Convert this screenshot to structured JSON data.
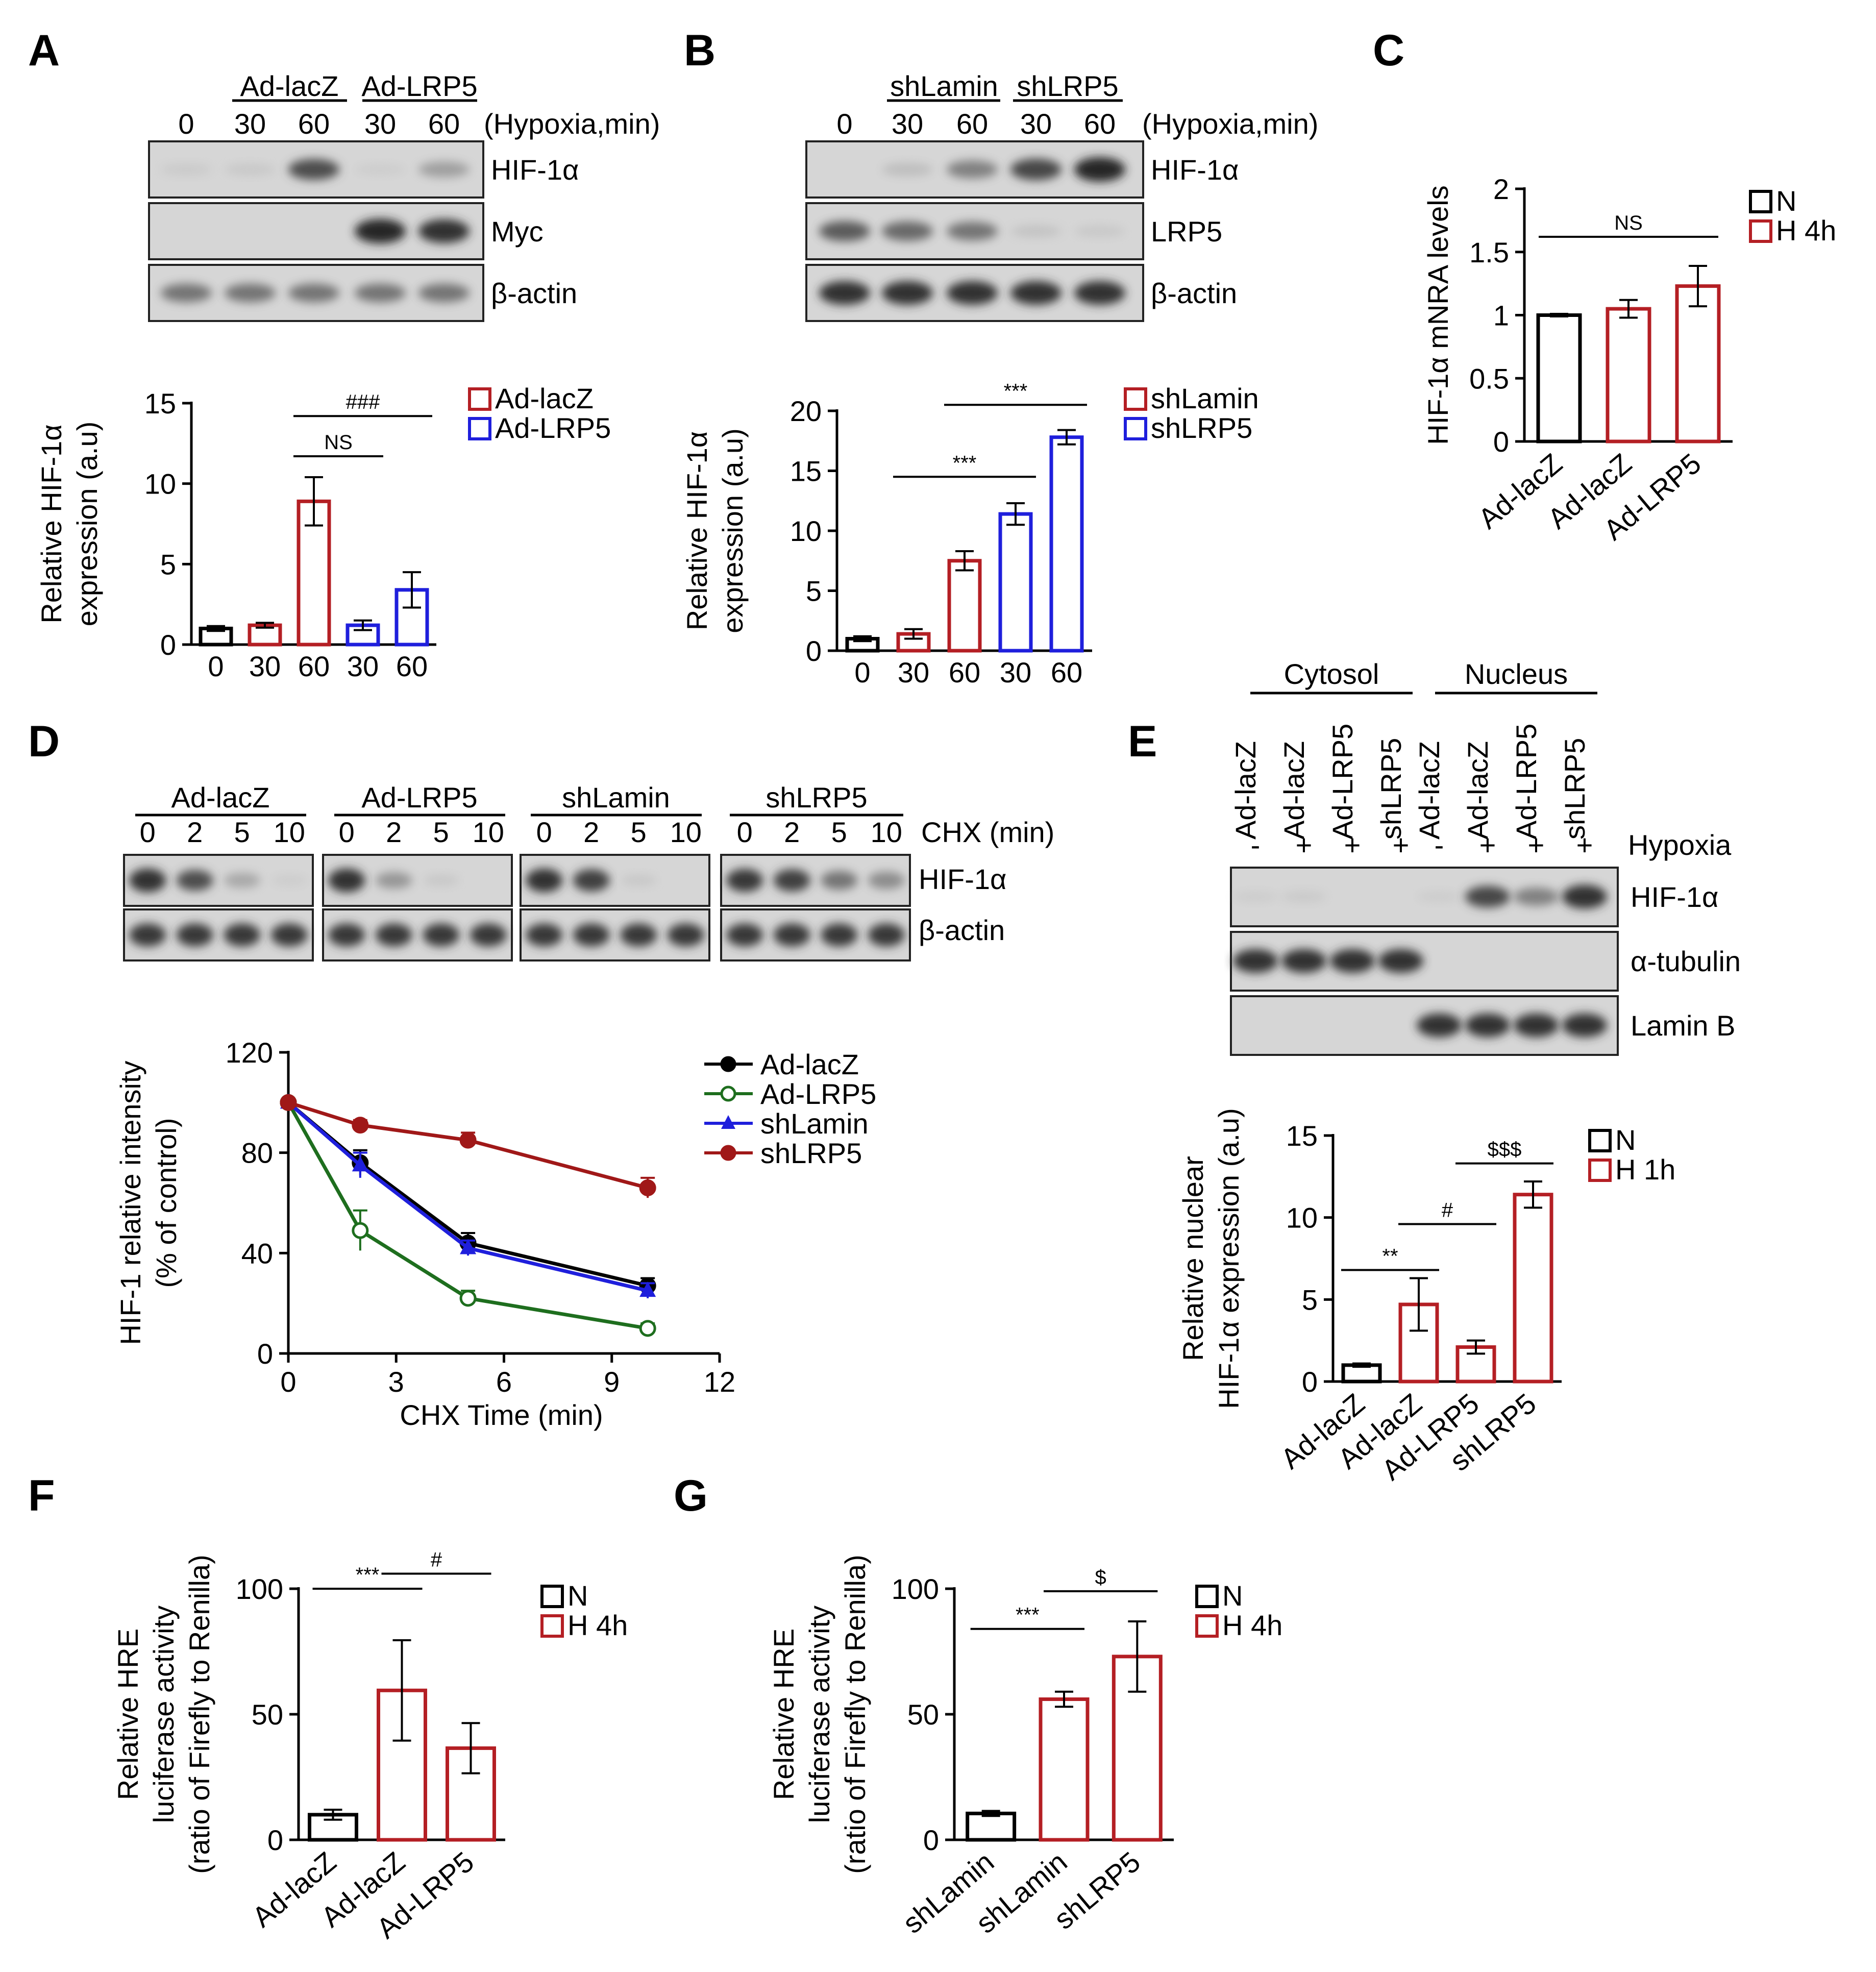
{
  "colors": {
    "black": "#000000",
    "red": "#b41f24",
    "blue": "#1f1fdc",
    "green": "#1e6e1e",
    "darkred": "#a01818"
  },
  "panel_letters": {
    "A": "A",
    "B": "B",
    "C": "C",
    "D": "D",
    "E": "E",
    "F": "F",
    "G": "G"
  },
  "blots": {
    "A": {
      "groups": [
        "Ad-lacZ",
        "Ad-LRP5"
      ],
      "times": [
        "0",
        "30",
        "60",
        "30",
        "60"
      ],
      "condition": "(Hypoxia,min)",
      "rows": [
        {
          "label": "HIF-1α",
          "intensity": [
            0.08,
            0.1,
            0.75,
            0.05,
            0.4
          ]
        },
        {
          "label": "Myc",
          "intensity": [
            0,
            0,
            0,
            1,
            0.95
          ]
        },
        {
          "label": "β-actin",
          "intensity": [
            0.6,
            0.6,
            0.6,
            0.6,
            0.6
          ]
        }
      ]
    },
    "B": {
      "groups": [
        "shLamin",
        "shLRP5"
      ],
      "times": [
        "0",
        "30",
        "60",
        "30",
        "60"
      ],
      "condition": "(Hypoxia,min)",
      "rows": [
        {
          "label": "HIF-1α",
          "intensity": [
            0,
            0.2,
            0.55,
            0.8,
            1
          ]
        },
        {
          "label": "LRP5",
          "intensity": [
            0.7,
            0.65,
            0.6,
            0.15,
            0.1
          ]
        },
        {
          "label": "β-actin",
          "intensity": [
            0.95,
            0.95,
            0.95,
            0.95,
            0.95
          ]
        }
      ]
    },
    "D": {
      "groups": [
        "Ad-lacZ",
        "Ad-LRP5",
        "shLamin",
        "shLRP5"
      ],
      "times": [
        "0",
        "2",
        "5",
        "10"
      ],
      "condition": "CHX (min)",
      "rows": [
        {
          "label": "HIF-1α",
          "intensity": [
            [
              0.95,
              0.75,
              0.35,
              0.05
            ],
            [
              0.95,
              0.45,
              0.1,
              0
            ],
            [
              0.95,
              0.85,
              0.1,
              0
            ],
            [
              0.9,
              0.85,
              0.6,
              0.5
            ]
          ]
        },
        {
          "label": "β-actin",
          "intensity": [
            [
              0.9,
              0.9,
              0.9,
              0.9
            ],
            [
              0.9,
              0.9,
              0.9,
              0.9
            ],
            [
              0.9,
              0.9,
              0.9,
              0.9
            ],
            [
              0.9,
              0.9,
              0.9,
              0.9
            ]
          ]
        }
      ]
    },
    "E": {
      "fractions": [
        "Cytosol",
        "Nucleus"
      ],
      "lanes": [
        "Ad-lacZ",
        "Ad-lacZ",
        "Ad-LRP5",
        "shLRP5",
        "Ad-lacZ",
        "Ad-lacZ",
        "Ad-LRP5",
        "shLRP5"
      ],
      "hypoxia": [
        "-",
        "+",
        "+",
        "+",
        "-",
        "+",
        "+",
        "+"
      ],
      "condition": "Hypoxia",
      "rows": [
        {
          "label": "HIF-1α",
          "intensity": [
            0.05,
            0.08,
            0,
            0,
            0.05,
            0.8,
            0.55,
            0.95
          ]
        },
        {
          "label": "α-tubulin",
          "intensity": [
            0.95,
            0.95,
            0.95,
            0.95,
            0,
            0,
            0,
            0
          ]
        },
        {
          "label": "Lamin B",
          "intensity": [
            0,
            0,
            0,
            0,
            0.95,
            0.95,
            0.95,
            0.95
          ]
        }
      ]
    }
  },
  "chart_data": [
    {
      "panel": "A",
      "type": "bar",
      "ylabel_lines": [
        "Relative HIF-1α",
        "expression (a.u)"
      ],
      "ylim": [
        0,
        15
      ],
      "yticks": [
        0,
        5,
        10,
        15
      ],
      "categories": [
        "0",
        "30",
        "60",
        "30",
        "60"
      ],
      "values": [
        1.0,
        1.2,
        8.9,
        1.2,
        3.4
      ],
      "errors": [
        0.15,
        0.15,
        1.5,
        0.3,
        1.1
      ],
      "colors": [
        "#000000",
        "#b41f24",
        "#b41f24",
        "#1f1fdc",
        "#1f1fdc"
      ],
      "legend": [
        {
          "label": "Ad-lacZ",
          "color": "#b41f24"
        },
        {
          "label": "Ad-LRP5",
          "color": "#1f1fdc"
        }
      ],
      "annotations": [
        {
          "text": "NS",
          "from": 2,
          "to": 3,
          "y": 11.7
        },
        {
          "text": "###",
          "from": 2,
          "to": 4,
          "y": 14.2
        }
      ]
    },
    {
      "panel": "B",
      "type": "bar",
      "ylabel_lines": [
        "Relative HIF-1α",
        "expression (a.u)"
      ],
      "ylim": [
        0,
        20
      ],
      "yticks": [
        0,
        5,
        10,
        15,
        20
      ],
      "categories": [
        "0",
        "30",
        "60",
        "30",
        "60"
      ],
      "values": [
        1.0,
        1.4,
        7.5,
        11.4,
        17.8
      ],
      "errors": [
        0.2,
        0.4,
        0.8,
        0.9,
        0.6
      ],
      "colors": [
        "#000000",
        "#b41f24",
        "#b41f24",
        "#1f1fdc",
        "#1f1fdc"
      ],
      "legend": [
        {
          "label": "shLamin",
          "color": "#b41f24"
        },
        {
          "label": "shLRP5",
          "color": "#1f1fdc"
        }
      ],
      "annotations": [
        {
          "text": "***",
          "from": 1,
          "to": 3,
          "y": 14.5
        },
        {
          "text": "***",
          "from": 2,
          "to": 4,
          "y": 20.5
        }
      ]
    },
    {
      "panel": "C",
      "type": "bar",
      "ylabel_lines": [
        "HIF-1α mNRA levels"
      ],
      "ylim": [
        0,
        2
      ],
      "yticks": [
        0,
        0.5,
        1,
        1.5,
        2
      ],
      "ytick_labels": [
        "0",
        "0.5",
        "1",
        "1.5",
        "2"
      ],
      "categories": [
        "Ad-lacZ",
        "Ad-lacZ",
        "Ad-LRP5"
      ],
      "values": [
        1.0,
        1.05,
        1.23
      ],
      "errors": [
        0.01,
        0.07,
        0.16
      ],
      "colors": [
        "#000000",
        "#b41f24",
        "#b41f24"
      ],
      "legend": [
        {
          "label": "N",
          "color": "#000000"
        },
        {
          "label": "H 4h",
          "color": "#b41f24"
        }
      ],
      "annotations": [
        {
          "text": "NS",
          "from": 0,
          "to": 2,
          "y": 1.62
        }
      ]
    },
    {
      "panel": "D",
      "type": "line",
      "xlabel": "CHX Time (min)",
      "ylabel_lines": [
        "HIF-1 relative intensity",
        "(% of control)"
      ],
      "xlim": [
        0,
        12
      ],
      "ylim": [
        0,
        120
      ],
      "xticks": [
        0,
        3,
        6,
        9,
        12
      ],
      "yticks": [
        0,
        40,
        80,
        120
      ],
      "x": [
        0,
        2,
        5,
        10
      ],
      "series": [
        {
          "name": "Ad-lacZ",
          "values": [
            100,
            76,
            44,
            27
          ],
          "errors": [
            0,
            5,
            4,
            3
          ],
          "color": "#000000",
          "marker": "circle",
          "filled": true
        },
        {
          "name": "Ad-LRP5",
          "values": [
            100,
            49,
            22,
            10
          ],
          "errors": [
            0,
            8,
            3,
            2
          ],
          "color": "#1e6e1e",
          "marker": "circle",
          "filled": false
        },
        {
          "name": "shLamin",
          "values": [
            100,
            75,
            42,
            25
          ],
          "errors": [
            0,
            5,
            3,
            3
          ],
          "color": "#1f1fdc",
          "marker": "triangle",
          "filled": true
        },
        {
          "name": "shLRP5",
          "values": [
            100,
            91,
            85,
            66
          ],
          "errors": [
            0,
            2,
            3,
            4
          ],
          "color": "#a01818",
          "marker": "circle",
          "filled": true
        }
      ]
    },
    {
      "panel": "E",
      "type": "bar",
      "ylabel_lines": [
        "Relative nuclear",
        "HIF-1α expression (a.u)"
      ],
      "ylim": [
        0,
        15
      ],
      "yticks": [
        0,
        5,
        10,
        15
      ],
      "categories": [
        "Ad-lacZ",
        "Ad-lacZ",
        "Ad-LRP5",
        "shLRP5"
      ],
      "values": [
        1.0,
        4.7,
        2.1,
        11.4
      ],
      "errors": [
        0.1,
        1.6,
        0.4,
        0.8
      ],
      "colors": [
        "#000000",
        "#b41f24",
        "#b41f24",
        "#b41f24"
      ],
      "legend": [
        {
          "label": "N",
          "color": "#000000"
        },
        {
          "label": "H 1h",
          "color": "#b41f24"
        }
      ],
      "annotations": [
        {
          "text": "**",
          "from": 0,
          "to": 1,
          "y": 6.8
        },
        {
          "text": "#",
          "from": 1,
          "to": 2,
          "y": 9.6
        },
        {
          "text": "$$$",
          "from": 2,
          "to": 3,
          "y": 13.3
        }
      ]
    },
    {
      "panel": "F",
      "type": "bar",
      "ylabel_lines": [
        "Relative HRE",
        "luciferase activity",
        "(ratio of Firefly to Renilla)"
      ],
      "ylim": [
        0,
        100
      ],
      "yticks": [
        0,
        50,
        100
      ],
      "categories": [
        "Ad-lacZ",
        "Ad-lacZ",
        "Ad-LRP5"
      ],
      "values": [
        10,
        59.5,
        36.5
      ],
      "errors": [
        2,
        20,
        10
      ],
      "colors": [
        "#000000",
        "#b41f24",
        "#b41f24"
      ],
      "legend": [
        {
          "label": "N",
          "color": "#000000"
        },
        {
          "label": "H 4h",
          "color": "#b41f24"
        }
      ],
      "annotations": [
        {
          "text": "***",
          "from": 0,
          "to": 1,
          "y": 100
        },
        {
          "text": "#",
          "from": 1,
          "to": 2,
          "y": 106
        }
      ]
    },
    {
      "panel": "G",
      "type": "bar",
      "ylabel_lines": [
        "Relative HRE",
        "luciferase activity",
        "(ratio of Firefly to Renilla)"
      ],
      "ylim": [
        0,
        100
      ],
      "yticks": [
        0,
        50,
        100
      ],
      "categories": [
        "shLamin",
        "shLamin",
        "shLRP5"
      ],
      "values": [
        10.5,
        56,
        73
      ],
      "errors": [
        1,
        3,
        14
      ],
      "colors": [
        "#000000",
        "#b41f24",
        "#b41f24"
      ],
      "legend": [
        {
          "label": "N",
          "color": "#000000"
        },
        {
          "label": "H 4h",
          "color": "#b41f24"
        }
      ],
      "annotations": [
        {
          "text": "***",
          "from": 0,
          "to": 1,
          "y": 84
        },
        {
          "text": "$",
          "from": 1,
          "to": 2,
          "y": 99
        }
      ]
    }
  ]
}
